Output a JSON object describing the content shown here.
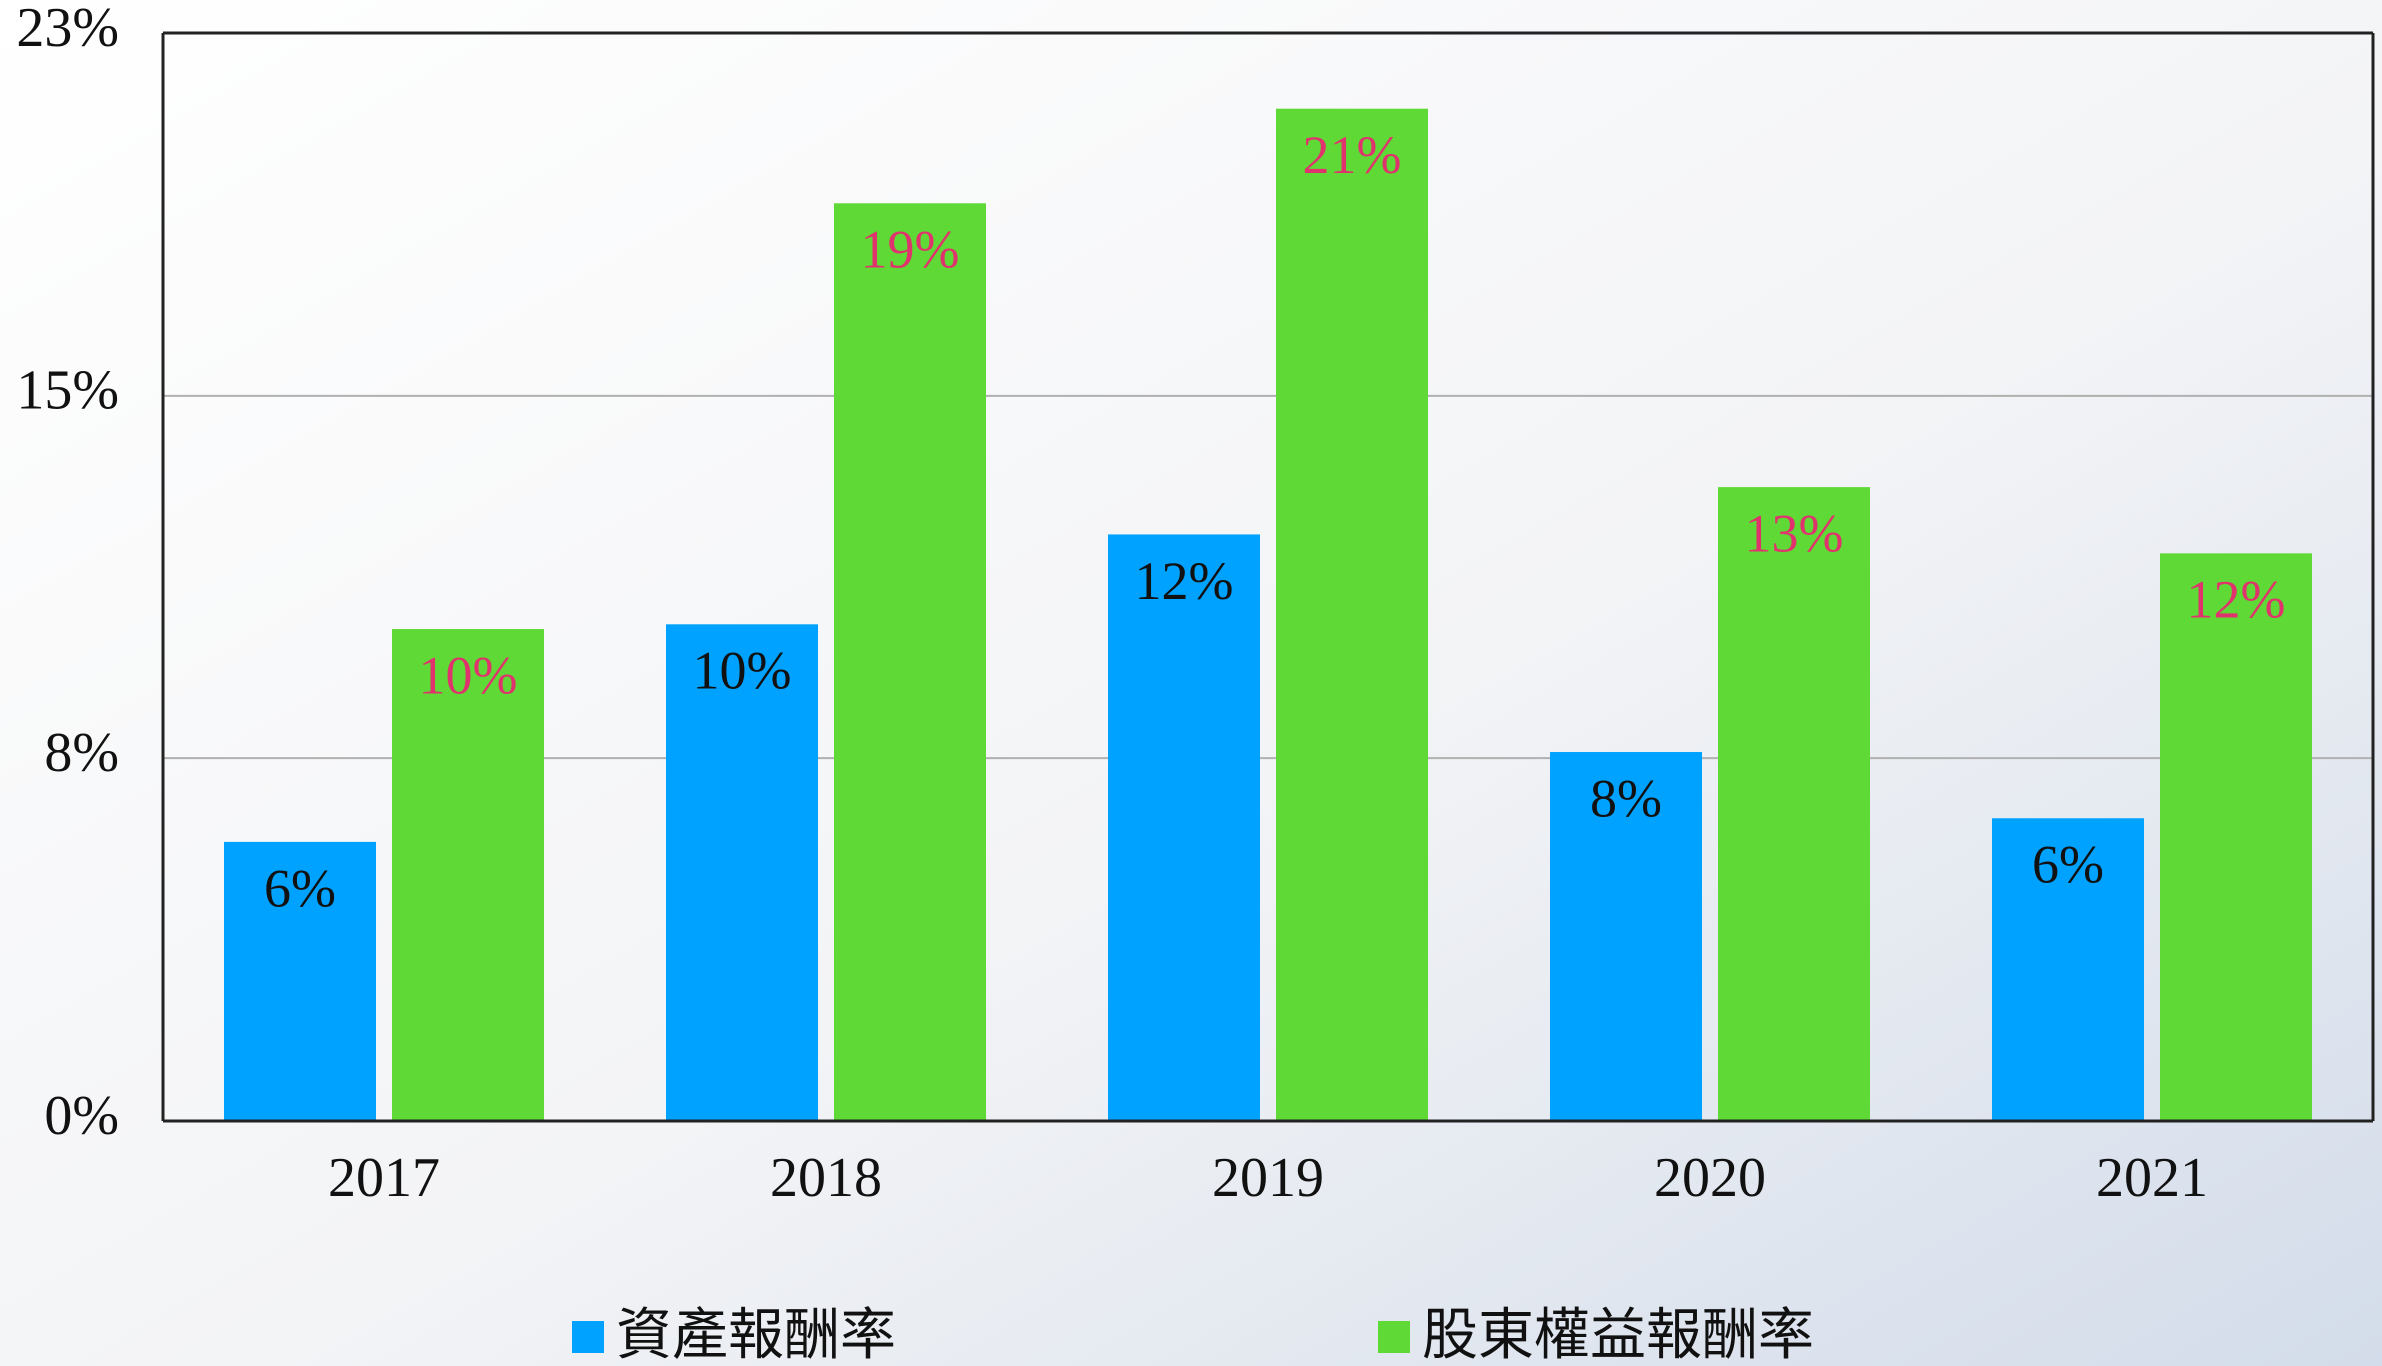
{
  "chart_data": {
    "type": "bar",
    "categories": [
      "2017",
      "2018",
      "2019",
      "2020",
      "2021"
    ],
    "series": [
      {
        "name": "資產報酬率",
        "color": "#00a2ff",
        "label_color": "#111111",
        "values": [
          5.9,
          10.5,
          12.4,
          7.8,
          6.4
        ],
        "value_labels": [
          "6%",
          "10%",
          "12%",
          "8%",
          "6%"
        ]
      },
      {
        "name": "股東權益報酬率",
        "color": "#5fd935",
        "label_color": "#e0336e",
        "values": [
          10.4,
          19.4,
          21.4,
          13.4,
          12.0
        ],
        "value_labels": [
          "10%",
          "19%",
          "21%",
          "13%",
          "12%"
        ]
      }
    ],
    "ylim": [
      0,
      23
    ],
    "yticks": [
      {
        "value": 0,
        "label": "0%"
      },
      {
        "value": 7.67,
        "label": "8%"
      },
      {
        "value": 15.33,
        "label": "15%"
      },
      {
        "value": 23,
        "label": "23%"
      }
    ],
    "grid": true
  }
}
